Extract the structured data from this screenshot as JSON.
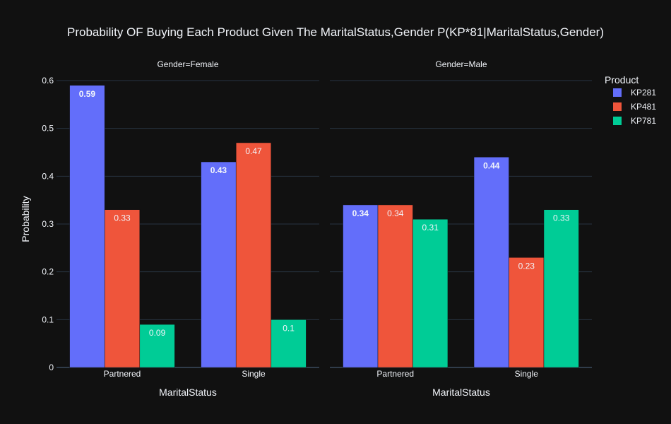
{
  "chart_data": {
    "type": "bar",
    "title": "Probability OF Buying Each Product Given The MaritalStatus,Gender P(KP*81|MaritalStatus,Gender)",
    "ylabel": "Probability",
    "xlabel": "MaritalStatus",
    "ylim": [
      0,
      0.6
    ],
    "yticks": [
      "0",
      "0.1",
      "0.2",
      "0.3",
      "0.4",
      "0.5",
      "0.6"
    ],
    "ytick_values": [
      0,
      0.1,
      0.2,
      0.3,
      0.4,
      0.5,
      0.6
    ],
    "grid": true,
    "legend": {
      "title": "Product",
      "placement": "top-right",
      "items": [
        {
          "name": "KP281",
          "color": "#636efa"
        },
        {
          "name": "KP481",
          "color": "#ef553b"
        },
        {
          "name": "KP781",
          "color": "#00cc96"
        }
      ]
    },
    "panels": [
      {
        "title": "Gender=Female",
        "categories": [
          "Partnered",
          "Single"
        ],
        "series": [
          {
            "name": "KP281",
            "values": [
              0.59,
              0.43
            ],
            "labels": [
              "0.59",
              "0.43"
            ]
          },
          {
            "name": "KP481",
            "values": [
              0.33,
              0.47
            ],
            "labels": [
              "0.33",
              "0.47"
            ]
          },
          {
            "name": "KP781",
            "values": [
              0.09,
              0.1
            ],
            "labels": [
              "0.09",
              "0.1"
            ]
          }
        ]
      },
      {
        "title": "Gender=Male",
        "categories": [
          "Partnered",
          "Single"
        ],
        "series": [
          {
            "name": "KP281",
            "values": [
              0.34,
              0.44
            ],
            "labels": [
              "0.34",
              "0.44"
            ]
          },
          {
            "name": "KP481",
            "values": [
              0.34,
              0.23
            ],
            "labels": [
              "0.34",
              "0.23"
            ]
          },
          {
            "name": "KP781",
            "values": [
              0.31,
              0.33
            ],
            "labels": [
              "0.31",
              "0.33"
            ]
          }
        ]
      }
    ]
  }
}
